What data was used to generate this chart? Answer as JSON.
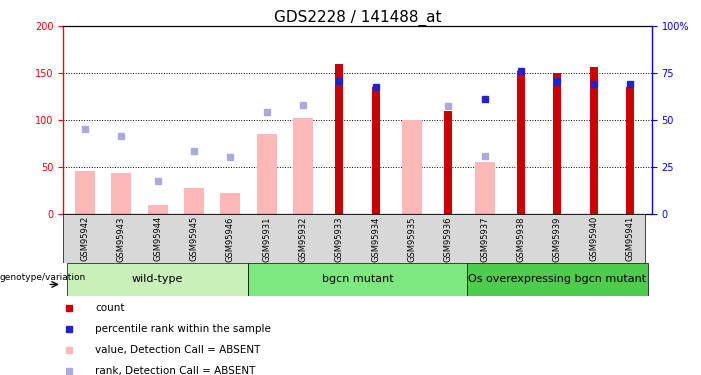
{
  "title": "GDS2228 / 141488_at",
  "samples": [
    "GSM95942",
    "GSM95943",
    "GSM95944",
    "GSM95945",
    "GSM95946",
    "GSM95931",
    "GSM95932",
    "GSM95933",
    "GSM95934",
    "GSM95935",
    "GSM95936",
    "GSM95937",
    "GSM95938",
    "GSM95939",
    "GSM95940",
    "GSM95941"
  ],
  "count_values": [
    0,
    0,
    0,
    0,
    0,
    0,
    0,
    160,
    135,
    0,
    110,
    0,
    152,
    150,
    157,
    135
  ],
  "percentile_values": [
    0,
    0,
    0,
    0,
    0,
    0,
    0,
    142,
    135,
    0,
    0,
    122,
    152,
    142,
    138,
    138
  ],
  "value_absent": [
    46,
    43,
    9,
    27,
    22,
    85,
    102,
    0,
    0,
    100,
    0,
    55,
    0,
    0,
    0,
    0
  ],
  "rank_absent": [
    90,
    83,
    35,
    67,
    61,
    109,
    116,
    0,
    0,
    0,
    115,
    62,
    0,
    0,
    0,
    0
  ],
  "group_colors": [
    "#c8f0b8",
    "#7de87d",
    "#4dcc4d"
  ],
  "groups": [
    {
      "label": "wild-type",
      "start": 0,
      "end": 5
    },
    {
      "label": "bgcn mutant",
      "start": 5,
      "end": 11
    },
    {
      "label": "Os overexpressing bgcn mutant",
      "start": 11,
      "end": 16
    }
  ],
  "ylim_left": [
    0,
    200
  ],
  "ylim_right": [
    0,
    100
  ],
  "yticks_left": [
    0,
    50,
    100,
    150,
    200
  ],
  "yticks_right": [
    0,
    25,
    50,
    75,
    100
  ],
  "ytick_labels_right": [
    "0",
    "25",
    "50",
    "75",
    "100%"
  ],
  "color_count": "#cc0000",
  "color_percentile": "#2222cc",
  "color_value_absent": "#ffb8b8",
  "color_rank_absent": "#aaaadd",
  "legend_items": [
    {
      "label": "count",
      "color": "#cc0000"
    },
    {
      "label": "percentile rank within the sample",
      "color": "#2222cc"
    },
    {
      "label": "value, Detection Call = ABSENT",
      "color": "#ffb8b8"
    },
    {
      "label": "rank, Detection Call = ABSENT",
      "color": "#aaaadd"
    }
  ],
  "title_fontsize": 11,
  "tick_fontsize": 7,
  "group_label_fontsize": 8
}
